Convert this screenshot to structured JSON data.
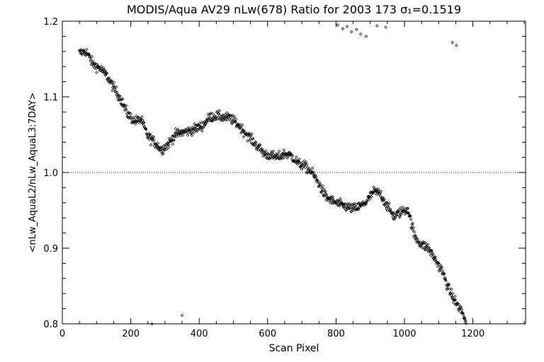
{
  "chart_data": {
    "type": "scatter",
    "title": "MODIS/Aqua AV29 nLw(678) Ratio for 2003 173 σ₁=0.1519",
    "xlabel": "Scan Pixel",
    "ylabel": "<nLw_AquaL2/nLw_AquaL3:7DAY>",
    "xlim": [
      0,
      1354
    ],
    "ylim": [
      0.8,
      1.2
    ],
    "xticks": [
      0,
      200,
      400,
      600,
      800,
      1000,
      1200
    ],
    "xtick_labels": [
      "0",
      "200",
      "400",
      "600",
      "800",
      "1000",
      "1200"
    ],
    "yticks": [
      0.8,
      0.9,
      1.0,
      1.1,
      1.2
    ],
    "ytick_labels": [
      "0.8",
      "0.9",
      "1.0",
      "1.1",
      "1.2"
    ],
    "reference_line": 1.0,
    "grid": false,
    "marker": "diamond",
    "trend": {
      "x": [
        50,
        70,
        90,
        110,
        130,
        150,
        170,
        190,
        210,
        230,
        250,
        270,
        290,
        310,
        330,
        350,
        370,
        390,
        410,
        430,
        450,
        470,
        490,
        510,
        530,
        550,
        570,
        590,
        610,
        630,
        650,
        670,
        690,
        710,
        730,
        750,
        770,
        790,
        810,
        830,
        850,
        870,
        890,
        910,
        930,
        950,
        970,
        990,
        1010,
        1030,
        1050,
        1070,
        1090,
        1110,
        1130,
        1150,
        1170,
        1180
      ],
      "y": [
        1.158,
        1.16,
        1.143,
        1.138,
        1.128,
        1.112,
        1.098,
        1.078,
        1.068,
        1.07,
        1.048,
        1.04,
        1.03,
        1.038,
        1.05,
        1.053,
        1.055,
        1.058,
        1.062,
        1.073,
        1.075,
        1.073,
        1.072,
        1.065,
        1.055,
        1.045,
        1.035,
        1.025,
        1.022,
        1.02,
        1.025,
        1.022,
        1.012,
        1.008,
        1.0,
        0.985,
        0.968,
        0.962,
        0.958,
        0.955,
        0.952,
        0.955,
        0.962,
        0.975,
        0.972,
        0.955,
        0.942,
        0.948,
        0.952,
        0.915,
        0.905,
        0.9,
        0.885,
        0.87,
        0.845,
        0.828,
        0.815,
        0.8
      ]
    },
    "scatter_spread": 0.006,
    "point_spacing": 1.25,
    "outliers": [
      {
        "x": 805,
        "y": 1.195
      },
      {
        "x": 820,
        "y": 1.19
      },
      {
        "x": 832,
        "y": 1.193
      },
      {
        "x": 845,
        "y": 1.186
      },
      {
        "x": 860,
        "y": 1.189
      },
      {
        "x": 872,
        "y": 1.183
      },
      {
        "x": 888,
        "y": 1.18
      },
      {
        "x": 920,
        "y": 1.194
      },
      {
        "x": 945,
        "y": 1.192
      },
      {
        "x": 1140,
        "y": 1.172
      },
      {
        "x": 1152,
        "y": 1.168
      },
      {
        "x": 350,
        "y": 0.811
      },
      {
        "x": 262,
        "y": 0.798
      }
    ]
  }
}
